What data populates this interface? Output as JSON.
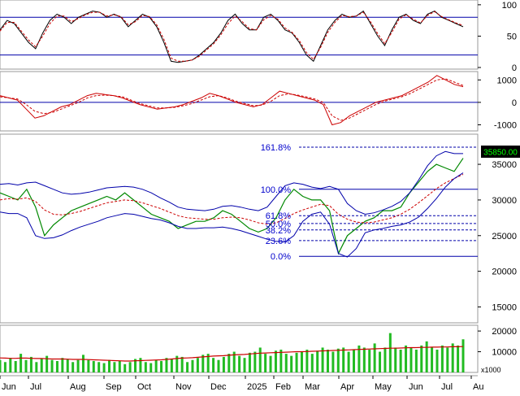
{
  "chart_data": [
    {
      "panel": "stochastic",
      "type": "line",
      "ylim": [
        0,
        105
      ],
      "y_ticks": [
        "0",
        "50",
        "100"
      ],
      "reference_lines": [
        20,
        80
      ],
      "series": [
        {
          "color": "#000000",
          "style": "solid",
          "values": [
            60,
            75,
            70,
            55,
            40,
            30,
            55,
            75,
            85,
            80,
            70,
            80,
            85,
            90,
            88,
            80,
            85,
            80,
            65,
            75,
            85,
            80,
            65,
            40,
            10,
            8,
            10,
            12,
            20,
            30,
            40,
            55,
            75,
            85,
            70,
            60,
            60,
            80,
            85,
            75,
            60,
            55,
            40,
            20,
            10,
            35,
            60,
            75,
            85,
            80,
            82,
            90,
            70,
            50,
            35,
            60,
            80,
            85,
            75,
            70,
            85,
            90,
            80,
            75,
            70,
            65
          ]
        },
        {
          "color": "#cc0000",
          "style": "dashed",
          "values": [
            58,
            72,
            72,
            58,
            44,
            33,
            50,
            70,
            82,
            82,
            73,
            78,
            84,
            88,
            88,
            82,
            84,
            81,
            68,
            73,
            83,
            81,
            68,
            45,
            15,
            10,
            10,
            12,
            18,
            28,
            38,
            52,
            70,
            82,
            73,
            62,
            60,
            76,
            83,
            77,
            63,
            56,
            43,
            24,
            13,
            32,
            56,
            72,
            83,
            81,
            82,
            88,
            73,
            54,
            38,
            56,
            77,
            84,
            77,
            71,
            83,
            89,
            81,
            76,
            71,
            67
          ]
        }
      ]
    },
    {
      "panel": "macd",
      "type": "line",
      "ylim": [
        -1200,
        1300
      ],
      "y_ticks": [
        "-1000",
        "0",
        "1000"
      ],
      "reference_lines": [
        0
      ],
      "series": [
        {
          "color": "#cc0000",
          "style": "solid",
          "values": [
            300,
            200,
            100,
            -300,
            -700,
            -600,
            -400,
            -200,
            -100,
            100,
            300,
            400,
            350,
            300,
            200,
            50,
            -100,
            -200,
            -300,
            -250,
            -200,
            -100,
            50,
            200,
            400,
            300,
            150,
            0,
            -100,
            -200,
            -100,
            200,
            500,
            400,
            300,
            200,
            100,
            -100,
            -1000,
            -900,
            -600,
            -400,
            -200,
            0,
            100,
            200,
            300,
            500,
            700,
            900,
            1200,
            1000,
            800,
            700
          ]
        },
        {
          "color": "#cc0000",
          "style": "dashed",
          "values": [
            250,
            200,
            150,
            -100,
            -400,
            -500,
            -450,
            -300,
            -150,
            0,
            200,
            300,
            320,
            300,
            250,
            100,
            -50,
            -150,
            -250,
            -250,
            -220,
            -150,
            -50,
            100,
            250,
            300,
            200,
            50,
            -50,
            -150,
            -120,
            50,
            300,
            380,
            330,
            250,
            150,
            0,
            -600,
            -800,
            -700,
            -500,
            -300,
            -100,
            50,
            150,
            250,
            400,
            600,
            800,
            1000,
            1050,
            900,
            750
          ]
        }
      ]
    },
    {
      "panel": "price",
      "type": "line",
      "ylim": [
        13000,
        39000
      ],
      "y_ticks": [
        "15000",
        "20000",
        "25000",
        "30000",
        "35000"
      ],
      "last_price_label": "35850.00",
      "fibonacci": {
        "levels": [
          {
            "label": "0.0%",
            "value": 22100
          },
          {
            "label": "23.6%",
            "value": 24300
          },
          {
            "label": "38.2%",
            "value": 25800
          },
          {
            "label": "50.0%",
            "value": 26700
          },
          {
            "label": "61.8%",
            "value": 27800
          },
          {
            "label": "100.0%",
            "value": 31500
          },
          {
            "label": "161.8%",
            "value": 37400
          }
        ]
      },
      "series": [
        {
          "name": "",
          "color": "#008800",
          "values": [
            31000,
            30500,
            30000,
            31500,
            29000,
            25000,
            26500,
            27500,
            28500,
            29000,
            29500,
            30000,
            30500,
            30000,
            31000,
            30000,
            29000,
            28000,
            27500,
            27000,
            26000,
            26500,
            27000,
            27000,
            27500,
            28500,
            28000,
            27000,
            26000,
            25500,
            26000,
            27500,
            30000,
            31500,
            30500,
            30000,
            30000,
            28500,
            22500,
            25000,
            26000,
            27000,
            27500,
            28500,
            28500,
            29000,
            31000,
            32500,
            34000,
            35000,
            34500,
            34000,
            35850
          ]
        },
        {
          "name": "",
          "color": "#cc0000",
          "style": "dashed",
          "values": [
            30000,
            30200,
            30100,
            30300,
            29800,
            28600,
            28000,
            27900,
            28100,
            28400,
            28800,
            29200,
            29600,
            29800,
            30000,
            29900,
            29600,
            29200,
            28800,
            28300,
            27800,
            27500,
            27400,
            27300,
            27300,
            27500,
            27600,
            27500,
            27200,
            26800,
            26600,
            26800,
            27400,
            28100,
            28600,
            29000,
            29400,
            29200,
            28000,
            27300,
            26900,
            26800,
            26900,
            27200,
            27500,
            28000,
            28700,
            29600,
            30600,
            31600,
            32400,
            33000,
            33600
          ]
        },
        {
          "name": "",
          "color": "#0000aa",
          "values": [
            32200,
            32300,
            32100,
            32400,
            32500,
            32000,
            31500,
            31000,
            30800,
            30900,
            31100,
            31400,
            31700,
            31800,
            31900,
            31800,
            31500,
            31000,
            30300,
            29700,
            29000,
            28700,
            28600,
            28500,
            28700,
            29100,
            29200,
            29000,
            28700,
            28500,
            29000,
            30500,
            32000,
            32400,
            32200,
            31800,
            31600,
            31900,
            31500,
            29500,
            28500,
            28000,
            28200,
            28600,
            29100,
            29800,
            31000,
            32800,
            34800,
            36200,
            36800,
            36500,
            36500
          ]
        },
        {
          "name": "",
          "color": "#0000aa",
          "values": [
            28300,
            28100,
            28100,
            27500,
            25000,
            24600,
            24700,
            25100,
            25700,
            26200,
            26600,
            27000,
            27500,
            27800,
            28100,
            28000,
            27700,
            27400,
            27200,
            26800,
            26300,
            26000,
            26000,
            26100,
            26100,
            26200,
            26000,
            25700,
            25300,
            24900,
            24500,
            24200,
            24100,
            25000,
            27000,
            28000,
            28300,
            26600,
            22500,
            22000,
            23200,
            25400,
            25800,
            26000,
            26300,
            26500,
            26900,
            27600,
            28800,
            30200,
            31800,
            33000,
            33800
          ]
        }
      ]
    },
    {
      "panel": "volume",
      "type": "bar",
      "ylim": [
        0,
        22000
      ],
      "y_ticks": [
        "10000",
        "20000"
      ],
      "unit_label": "x1000",
      "color": "#22bb22",
      "ma_color": "#cc0000",
      "values": [
        6000,
        5000,
        7000,
        5500,
        9000,
        6000,
        7500,
        5000,
        6500,
        8000,
        6000,
        5500,
        7000,
        6500,
        5000,
        6000,
        8500,
        6000,
        5500,
        5000,
        4500,
        6000,
        5000,
        5500,
        4000,
        5000,
        6500,
        7000,
        5000,
        4500,
        6000,
        5500,
        7000,
        6500,
        8000,
        7500,
        5000,
        6000,
        7000,
        8500,
        9000,
        7000,
        6000,
        7500,
        9000,
        10000,
        8000,
        7000,
        9500,
        10000,
        12000,
        9000,
        8000,
        10500,
        11000,
        9000,
        8000,
        9500,
        10000,
        11000,
        9000,
        10500,
        12000,
        11000,
        10000,
        11500,
        12000,
        10000,
        11000,
        13000,
        12000,
        11000,
        14000,
        10000,
        12000,
        19000,
        12000,
        11000,
        13000,
        12000,
        11000,
        13000,
        15000,
        12000,
        11000,
        13000,
        12000,
        14000,
        13000,
        16000
      ],
      "ma": [
        7000,
        6900,
        6800,
        6800,
        6900,
        6900,
        6800,
        6700,
        6700,
        6600,
        6500,
        6500,
        6500,
        6400,
        6300,
        6300,
        6300,
        6200,
        6100,
        6000,
        5900,
        5800,
        5700,
        5600,
        5500,
        5500,
        5600,
        5700,
        5800,
        5900,
        6000,
        6100,
        6300,
        6500,
        6700,
        6900,
        7000,
        7100,
        7300,
        7500,
        7700,
        7900,
        8000,
        8100,
        8300,
        8500,
        8600,
        8700,
        8900,
        9100,
        9300,
        9400,
        9500,
        9600,
        9700,
        9800,
        9900,
        10000,
        10000,
        10100,
        10200,
        10300,
        10400,
        10500,
        10600,
        10700,
        10800,
        10900,
        11000,
        11100,
        11200,
        11300,
        11400,
        11500,
        11600,
        11700,
        11700,
        11800,
        11900,
        12000,
        12000,
        12100,
        12100,
        12200,
        12200,
        12300,
        12300,
        12400,
        12400,
        12500
      ]
    }
  ],
  "x_axis": {
    "months": [
      "Jun",
      "Jul",
      "Aug",
      "Sep",
      "Oct",
      "Nov",
      "Dec",
      "2025",
      "Feb",
      "Mar",
      "Apr",
      "May",
      "Jun",
      "Jul",
      "Au"
    ]
  }
}
